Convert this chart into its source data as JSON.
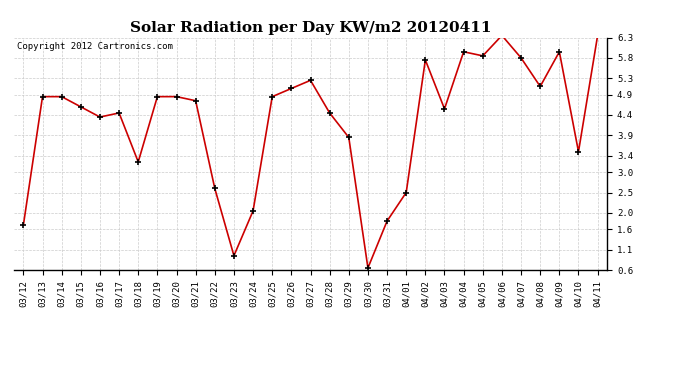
{
  "title": "Solar Radiation per Day KW/m2 20120411",
  "copyright": "Copyright 2012 Cartronics.com",
  "dates": [
    "03/12",
    "03/13",
    "03/14",
    "03/15",
    "03/16",
    "03/17",
    "03/18",
    "03/19",
    "03/20",
    "03/21",
    "03/22",
    "03/23",
    "03/24",
    "03/25",
    "03/26",
    "03/27",
    "03/28",
    "03/29",
    "03/30",
    "03/31",
    "04/01",
    "04/02",
    "04/03",
    "04/04",
    "04/05",
    "04/06",
    "04/07",
    "04/08",
    "04/09",
    "04/10",
    "04/11"
  ],
  "values": [
    1.7,
    4.85,
    4.85,
    4.6,
    4.35,
    4.45,
    3.25,
    4.85,
    4.85,
    4.75,
    2.6,
    0.95,
    2.05,
    4.85,
    5.05,
    5.25,
    4.45,
    3.85,
    0.65,
    1.8,
    2.5,
    5.75,
    4.55,
    5.95,
    5.85,
    6.35,
    5.8,
    5.1,
    5.95,
    3.5,
    6.35
  ],
  "line_color": "#cc0000",
  "marker": "+",
  "marker_size": 5,
  "marker_color": "#000000",
  "background_color": "#ffffff",
  "grid_color": "#cccccc",
  "ylim": [
    0.6,
    6.3
  ],
  "yticks": [
    0.6,
    1.1,
    1.6,
    2.0,
    2.5,
    3.0,
    3.4,
    3.9,
    4.4,
    4.9,
    5.3,
    5.8,
    6.3
  ],
  "title_fontsize": 11,
  "copyright_fontsize": 6.5,
  "tick_fontsize": 6.5
}
